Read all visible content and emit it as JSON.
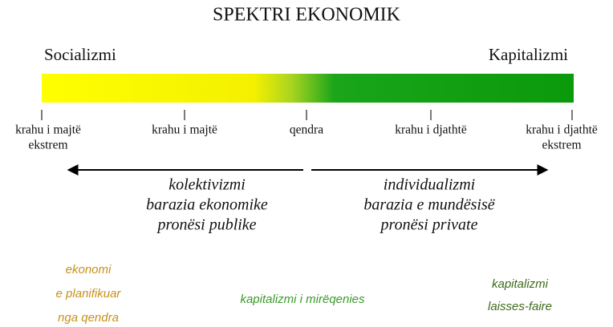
{
  "title": "SPEKTRI EKONOMIK",
  "left_label": "Socializmi",
  "right_label": "Kapitalizmi",
  "scale": [
    [
      "krahu i majtë",
      "ekstrem"
    ],
    [
      "krahu i majtë"
    ],
    [
      "qendra"
    ],
    [
      "krahu i djathtë"
    ],
    [
      "krahu i djathtë",
      "ekstrem"
    ]
  ],
  "left_side": [
    "kolektivizmi",
    "barazia ekonomike",
    "pronësi publike"
  ],
  "right_side": [
    "individualizmi",
    "barazia e mundësisë",
    "pronësi private"
  ],
  "examples": [
    [
      "ekonomi",
      "e planifikuar",
      "nga qendra"
    ],
    [
      "kapitalizmi i mirëqenies"
    ],
    [
      "kapitalizmi",
      "laisses-faire"
    ]
  ]
}
